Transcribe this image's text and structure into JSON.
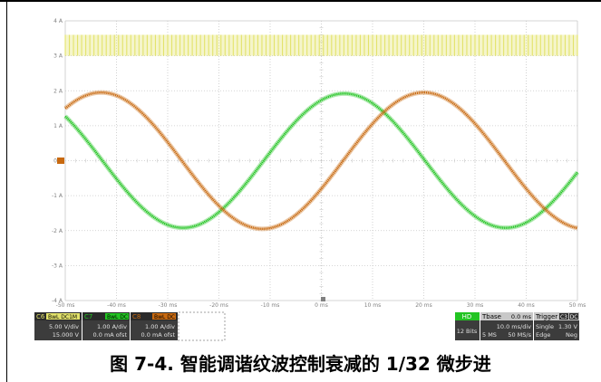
{
  "caption": "图 7-4. 智能调谐纹波控制衰减的 1/32 微步进",
  "colors": {
    "c6": "#e3e36b",
    "c7": "#22c422",
    "c8": "#c8690f",
    "grid": "#c8c8c8",
    "axis_text": "#808080"
  },
  "chart_data": {
    "type": "line",
    "x_unit": "ms",
    "y_unit": "A",
    "xlim": [
      -50,
      50
    ],
    "ylim": [
      -4,
      4
    ],
    "x_ticks": [
      "-50 ms",
      "-40 ms",
      "-30 ms",
      "-20 ms",
      "-10 ms",
      "0 ms",
      "10 ms",
      "20 ms",
      "30 ms",
      "40 ms",
      "50 ms"
    ],
    "y_ticks": [
      "4 A",
      "3 A",
      "2 A",
      "1 A",
      "0 A",
      "-1 A",
      "-2 A",
      "-3 A",
      "-4 A"
    ],
    "grid": true,
    "series": [
      {
        "name": "C6",
        "color": "#e3e36b",
        "shape": "pwm_band",
        "low": 3.0,
        "high": 3.6,
        "period_ms": 0.8
      },
      {
        "name": "C7",
        "color": "#22c422",
        "shape": "sine",
        "amplitude": 1.92,
        "period_ms": 63,
        "phase_peak_ms": 4.5
      },
      {
        "name": "C8",
        "color": "#c8690f",
        "shape": "sine",
        "amplitude": 1.95,
        "period_ms": 63,
        "phase_peak_ms": 20
      }
    ]
  },
  "status": {
    "channels": [
      {
        "id": "C6",
        "tags": "BwL DC1M",
        "vdiv": "5.00 V/div",
        "ofst": "15.000 V"
      },
      {
        "id": "C7",
        "tags": "BwL DC",
        "vdiv": "1.00 A/div",
        "ofst": "0.0 mA ofst"
      },
      {
        "id": "C8",
        "tags": "BwL DC",
        "vdiv": "1.00 A/div",
        "ofst": "0.0 mA ofst"
      }
    ],
    "hd": {
      "label": "HD",
      "bits": "12 Bits"
    },
    "tbase": {
      "label": "Tbase",
      "value": "0.0 ms",
      "div": "10.0 ms/div",
      "samples": "5 MS",
      "rate": "50 MS/s"
    },
    "trigger": {
      "label": "Trigger",
      "ch": "C3",
      "coupling": "DC",
      "mode": "Single",
      "level": "1.30 V",
      "type": "Edge",
      "slope": "Neg"
    }
  }
}
